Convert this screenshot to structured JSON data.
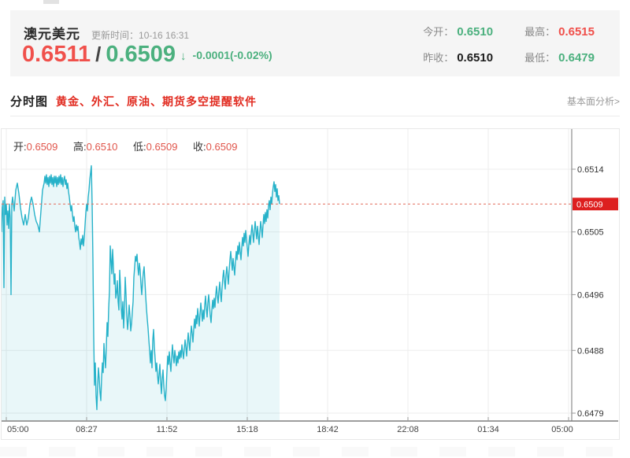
{
  "header": {
    "pair_name": "澳元美元",
    "update_label": "更新时间：",
    "update_time": "10-16 16:31",
    "bid": "0.6511",
    "separator": "/",
    "ask": "0.6509",
    "arrow": "↓",
    "change": "-0.0001(-0.02%)",
    "stats": [
      {
        "label": "今开：",
        "value": "0.6510",
        "tone": "green"
      },
      {
        "label": "最高：",
        "value": "0.6515",
        "tone": "red"
      },
      {
        "label": "昨收：",
        "value": "0.6510",
        "tone": "dark"
      },
      {
        "label": "最低：",
        "value": "0.6479",
        "tone": "green"
      }
    ]
  },
  "section_bar": {
    "title": "分时图",
    "promo": "黄金、外汇、原油、期货多空提醒软件",
    "link": "基本面分析>"
  },
  "colors": {
    "up_red": "#f0504b",
    "down_green": "#4bb07e",
    "promo_red": "#e12b20",
    "ohlc_red": "#e0544a",
    "line": "#27b2c9",
    "fill": "rgba(39,178,201,0.10)",
    "current_line": "#e26a5a",
    "badge_bg": "#dd1f1f",
    "grid": "#ededed",
    "axis": "#9e9e9e"
  },
  "chart_data": {
    "type": "line",
    "title": "AUD/USD intraday (分时图)",
    "ohlc_legend": [
      {
        "label": "开:",
        "value": "0.6509"
      },
      {
        "label": "高:",
        "value": "0.6510"
      },
      {
        "label": "低:",
        "value": "0.6509"
      },
      {
        "label": "收:",
        "value": "0.6509"
      }
    ],
    "x_ticks": [
      "05:00",
      "08:27",
      "11:52",
      "15:18",
      "18:42",
      "22:08",
      "01:34",
      "05:00"
    ],
    "y_ticks": [
      0.6514,
      0.6505,
      0.6496,
      0.6488,
      0.6479
    ],
    "ylim": [
      0.6479,
      0.6514
    ],
    "current_price": 0.6509,
    "grid_on": true,
    "x_unit": "px offset from 05:00 along time axis",
    "points": [
      [
        0,
        0.6505
      ],
      [
        1,
        0.65085
      ],
      [
        2,
        0.65095
      ],
      [
        3,
        0.6497
      ],
      [
        4,
        0.651
      ],
      [
        5,
        0.65075
      ],
      [
        6,
        0.6509
      ],
      [
        7,
        0.6506
      ],
      [
        8,
        0.6508
      ],
      [
        9,
        0.65055
      ],
      [
        10,
        0.6509
      ],
      [
        11,
        0.6507
      ],
      [
        12,
        0.6496
      ],
      [
        13,
        0.6509
      ],
      [
        14,
        0.651
      ],
      [
        16,
        0.6508
      ],
      [
        18,
        0.6511
      ],
      [
        20,
        0.6512
      ],
      [
        22,
        0.65105
      ],
      [
        24,
        0.65085
      ],
      [
        26,
        0.6507
      ],
      [
        28,
        0.6506
      ],
      [
        30,
        0.65075
      ],
      [
        32,
        0.6506
      ],
      [
        34,
        0.6507
      ],
      [
        36,
        0.6509
      ],
      [
        38,
        0.651
      ],
      [
        40,
        0.6509
      ],
      [
        42,
        0.65075
      ],
      [
        44,
        0.65065
      ],
      [
        46,
        0.6506
      ],
      [
        48,
        0.6505
      ],
      [
        50,
        0.6508
      ],
      [
        52,
        0.6511
      ],
      [
        54,
        0.6512
      ],
      [
        55,
        0.6513
      ],
      [
        56,
        0.6512
      ],
      [
        57,
        0.65132
      ],
      [
        58,
        0.65118
      ],
      [
        59,
        0.65128
      ],
      [
        60,
        0.65115
      ],
      [
        61,
        0.6513
      ],
      [
        62,
        0.6512
      ],
      [
        63,
        0.65132
      ],
      [
        64,
        0.65118
      ],
      [
        65,
        0.65128
      ],
      [
        66,
        0.65115
      ],
      [
        67,
        0.6513
      ],
      [
        68,
        0.6512
      ],
      [
        69,
        0.6513
      ],
      [
        70,
        0.65115
      ],
      [
        71,
        0.65128
      ],
      [
        72,
        0.65118
      ],
      [
        73,
        0.6513
      ],
      [
        74,
        0.6512
      ],
      [
        75,
        0.65132
      ],
      [
        76,
        0.65118
      ],
      [
        77,
        0.65128
      ],
      [
        78,
        0.65115
      ],
      [
        79,
        0.65125
      ],
      [
        80,
        0.6513
      ],
      [
        81,
        0.65118
      ],
      [
        82,
        0.65125
      ],
      [
        83,
        0.65112
      ],
      [
        84,
        0.6512
      ],
      [
        85,
        0.65108
      ],
      [
        86,
        0.651
      ],
      [
        87,
        0.6509
      ],
      [
        88,
        0.6508
      ],
      [
        89,
        0.65088
      ],
      [
        90,
        0.65075
      ],
      [
        91,
        0.65065
      ],
      [
        92,
        0.65072
      ],
      [
        93,
        0.65058
      ],
      [
        94,
        0.6505
      ],
      [
        95,
        0.6506
      ],
      [
        96,
        0.65052
      ],
      [
        97,
        0.65058
      ],
      [
        98,
        0.65042
      ],
      [
        99,
        0.65035
      ],
      [
        100,
        0.65025
      ],
      [
        101,
        0.6504
      ],
      [
        102,
        0.65032
      ],
      [
        103,
        0.65045
      ],
      [
        104,
        0.6503
      ],
      [
        105,
        0.65042
      ],
      [
        106,
        0.6506
      ],
      [
        107,
        0.65078
      ],
      [
        108,
        0.6509
      ],
      [
        109,
        0.6508
      ],
      [
        110,
        0.651
      ],
      [
        111,
        0.6511
      ],
      [
        112,
        0.65125
      ],
      [
        113,
        0.65135
      ],
      [
        114,
        0.65145
      ],
      [
        115,
        0.6509
      ],
      [
        116,
        0.6501
      ],
      [
        117,
        0.649
      ],
      [
        118,
        0.6483
      ],
      [
        119,
        0.64862
      ],
      [
        120,
        0.64815
      ],
      [
        121,
        0.64795
      ],
      [
        122,
        0.6483
      ],
      [
        123,
        0.64855
      ],
      [
        124,
        0.6484
      ],
      [
        125,
        0.6482
      ],
      [
        126,
        0.64808
      ],
      [
        127,
        0.6484
      ],
      [
        128,
        0.64862
      ],
      [
        129,
        0.64848
      ],
      [
        130,
        0.6489
      ],
      [
        131,
        0.6487
      ],
      [
        132,
        0.64855
      ],
      [
        133,
        0.64885
      ],
      [
        134,
        0.6492
      ],
      [
        135,
        0.649
      ],
      [
        136,
        0.6494
      ],
      [
        137,
        0.64965
      ],
      [
        138,
        0.6503
      ],
      [
        139,
        0.6501
      ],
      [
        140,
        0.6499
      ],
      [
        141,
        0.65025
      ],
      [
        142,
        0.65
      ],
      [
        143,
        0.64975
      ],
      [
        144,
        0.6499
      ],
      [
        145,
        0.64955
      ],
      [
        146,
        0.64962
      ],
      [
        147,
        0.6498
      ],
      [
        148,
        0.6495
      ],
      [
        149,
        0.64938
      ],
      [
        150,
        0.64995
      ],
      [
        151,
        0.6497
      ],
      [
        152,
        0.6494
      ],
      [
        153,
        0.64925
      ],
      [
        154,
        0.6495
      ],
      [
        155,
        0.64912
      ],
      [
        156,
        0.6494
      ],
      [
        157,
        0.64985
      ],
      [
        158,
        0.6496
      ],
      [
        159,
        0.6493
      ],
      [
        160,
        0.6491
      ],
      [
        161,
        0.64925
      ],
      [
        162,
        0.64945
      ],
      [
        163,
        0.6493
      ],
      [
        164,
        0.64908
      ],
      [
        165,
        0.64918
      ],
      [
        166,
        0.64935
      ],
      [
        167,
        0.6495
      ],
      [
        168,
        0.64985
      ],
      [
        169,
        0.65
      ],
      [
        170,
        0.65015
      ],
      [
        171,
        0.65008
      ],
      [
        172,
        0.65018
      ],
      [
        173,
        0.65
      ],
      [
        174,
        0.64988
      ],
      [
        175,
        0.65005
      ],
      [
        176,
        0.64995
      ],
      [
        177,
        0.64975
      ],
      [
        178,
        0.6496
      ],
      [
        179,
        0.64978
      ],
      [
        180,
        0.64992
      ],
      [
        181,
        0.65
      ],
      [
        182,
        0.6498
      ],
      [
        183,
        0.64958
      ],
      [
        184,
        0.6494
      ],
      [
        185,
        0.64925
      ],
      [
        186,
        0.64912
      ],
      [
        187,
        0.64895
      ],
      [
        188,
        0.6488
      ],
      [
        189,
        0.64862
      ],
      [
        190,
        0.6488
      ],
      [
        191,
        0.64855
      ],
      [
        192,
        0.64895
      ],
      [
        193,
        0.6491
      ],
      [
        194,
        0.64885
      ],
      [
        195,
        0.64868
      ],
      [
        196,
        0.6485
      ],
      [
        197,
        0.64862
      ],
      [
        198,
        0.64845
      ],
      [
        199,
        0.64832
      ],
      [
        200,
        0.64845
      ],
      [
        201,
        0.6486
      ],
      [
        202,
        0.64835
      ],
      [
        203,
        0.64818
      ],
      [
        204,
        0.6484
      ],
      [
        205,
        0.64852
      ],
      [
        206,
        0.6483
      ],
      [
        207,
        0.64815
      ],
      [
        208,
        0.64808
      ],
      [
        209,
        0.64825
      ],
      [
        210,
        0.6485
      ],
      [
        211,
        0.64872
      ],
      [
        212,
        0.6486
      ],
      [
        213,
        0.64878
      ],
      [
        214,
        0.64862
      ],
      [
        215,
        0.6485
      ],
      [
        216,
        0.6487
      ],
      [
        217,
        0.64888
      ],
      [
        218,
        0.64872
      ],
      [
        219,
        0.64862
      ],
      [
        220,
        0.6488
      ],
      [
        221,
        0.6487
      ],
      [
        222,
        0.64858
      ],
      [
        223,
        0.64872
      ],
      [
        224,
        0.64862
      ],
      [
        225,
        0.64878
      ],
      [
        226,
        0.64868
      ],
      [
        227,
        0.6488
      ],
      [
        228,
        0.6487
      ],
      [
        229,
        0.64888
      ],
      [
        230,
        0.64878
      ],
      [
        231,
        0.64868
      ],
      [
        232,
        0.64882
      ],
      [
        233,
        0.64895
      ],
      [
        234,
        0.64885
      ],
      [
        235,
        0.64872
      ],
      [
        236,
        0.6489
      ],
      [
        237,
        0.64905
      ],
      [
        238,
        0.64892
      ],
      [
        239,
        0.6488
      ],
      [
        240,
        0.649
      ],
      [
        241,
        0.64915
      ],
      [
        242,
        0.64905
      ],
      [
        243,
        0.64892
      ],
      [
        244,
        0.6491
      ],
      [
        245,
        0.64925
      ],
      [
        246,
        0.64912
      ],
      [
        247,
        0.6493
      ],
      [
        248,
        0.64918
      ],
      [
        249,
        0.6494
      ],
      [
        250,
        0.64928
      ],
      [
        251,
        0.64915
      ],
      [
        252,
        0.64932
      ],
      [
        253,
        0.64948
      ],
      [
        254,
        0.64935
      ],
      [
        255,
        0.64922
      ],
      [
        256,
        0.64938
      ],
      [
        257,
        0.64925
      ],
      [
        258,
        0.64945
      ],
      [
        259,
        0.64958
      ],
      [
        260,
        0.6494
      ],
      [
        261,
        0.64928
      ],
      [
        262,
        0.64948
      ],
      [
        263,
        0.6496
      ],
      [
        264,
        0.64945
      ],
      [
        265,
        0.6493
      ],
      [
        266,
        0.6492
      ],
      [
        267,
        0.64938
      ],
      [
        268,
        0.64952
      ],
      [
        269,
        0.6494
      ],
      [
        270,
        0.64955
      ],
      [
        271,
        0.64942
      ],
      [
        272,
        0.6496
      ],
      [
        273,
        0.64972
      ],
      [
        274,
        0.64958
      ],
      [
        275,
        0.64948
      ],
      [
        276,
        0.64965
      ],
      [
        277,
        0.64978
      ],
      [
        278,
        0.64962
      ],
      [
        279,
        0.6495
      ],
      [
        280,
        0.6497
      ],
      [
        281,
        0.64985
      ],
      [
        282,
        0.64995
      ],
      [
        283,
        0.6498
      ],
      [
        284,
        0.64968
      ],
      [
        285,
        0.64988
      ],
      [
        286,
        0.65
      ],
      [
        287,
        0.64988
      ],
      [
        288,
        0.64975
      ],
      [
        289,
        0.64995
      ],
      [
        290,
        0.6501
      ],
      [
        291,
        0.65022
      ],
      [
        292,
        0.65008
      ],
      [
        293,
        0.64995
      ],
      [
        294,
        0.65012
      ],
      [
        295,
        0.65
      ],
      [
        296,
        0.64988
      ],
      [
        297,
        0.65008
      ],
      [
        298,
        0.65022
      ],
      [
        299,
        0.6501
      ],
      [
        300,
        0.6503
      ],
      [
        301,
        0.65018
      ],
      [
        302,
        0.65035
      ],
      [
        303,
        0.65022
      ],
      [
        304,
        0.6501
      ],
      [
        305,
        0.65028
      ],
      [
        306,
        0.65042
      ],
      [
        307,
        0.6503
      ],
      [
        308,
        0.65048
      ],
      [
        309,
        0.65035
      ],
      [
        310,
        0.65052
      ],
      [
        311,
        0.6504
      ],
      [
        312,
        0.65028
      ],
      [
        313,
        0.65015
      ],
      [
        314,
        0.65032
      ],
      [
        315,
        0.65045
      ],
      [
        316,
        0.65032
      ],
      [
        317,
        0.65048
      ],
      [
        318,
        0.6506
      ],
      [
        319,
        0.65048
      ],
      [
        320,
        0.65035
      ],
      [
        321,
        0.65052
      ],
      [
        322,
        0.65065
      ],
      [
        323,
        0.65052
      ],
      [
        324,
        0.6504
      ],
      [
        325,
        0.65058
      ],
      [
        326,
        0.65045
      ],
      [
        327,
        0.65032
      ],
      [
        328,
        0.6505
      ],
      [
        329,
        0.65065
      ],
      [
        330,
        0.65055
      ],
      [
        331,
        0.65042
      ],
      [
        332,
        0.6506
      ],
      [
        333,
        0.65075
      ],
      [
        334,
        0.65062
      ],
      [
        335,
        0.65078
      ],
      [
        336,
        0.65065
      ],
      [
        337,
        0.65082
      ],
      [
        338,
        0.6507
      ],
      [
        339,
        0.65088
      ],
      [
        340,
        0.65095
      ],
      [
        341,
        0.65082
      ],
      [
        342,
        0.651
      ],
      [
        343,
        0.6509
      ],
      [
        344,
        0.65105
      ],
      [
        345,
        0.65115
      ],
      [
        346,
        0.65122
      ],
      [
        347,
        0.65108
      ],
      [
        348,
        0.65118
      ],
      [
        349,
        0.651
      ],
      [
        350,
        0.65112
      ],
      [
        351,
        0.65095
      ],
      [
        352,
        0.65102
      ],
      [
        353,
        0.6509
      ]
    ]
  }
}
